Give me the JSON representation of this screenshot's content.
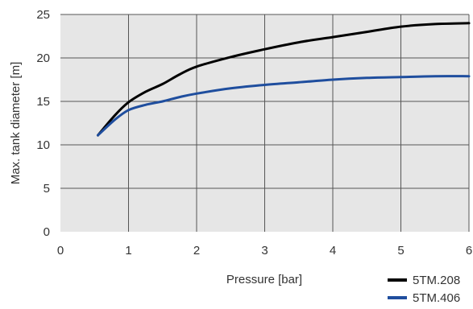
{
  "chart_data": {
    "type": "line",
    "title": "",
    "xlabel": "Pressure [bar]",
    "ylabel": "Max. tank diameter [m]",
    "xlim": [
      0,
      6
    ],
    "ylim": [
      0,
      25
    ],
    "x_ticks": [
      0,
      1,
      2,
      3,
      4,
      5,
      6
    ],
    "y_ticks": [
      0,
      5,
      10,
      15,
      20,
      25
    ],
    "x_tick_labels": [
      "0",
      "1",
      "2",
      "3",
      "4",
      "5",
      "6"
    ],
    "y_tick_labels": [
      "0",
      "5",
      "10",
      "15",
      "20",
      "25"
    ],
    "grid": true,
    "background": "#e6e6e6",
    "grid_color": "#555555",
    "legend_position": "bottom-right",
    "series": [
      {
        "name": "5TM.208",
        "color": "#000000",
        "x": [
          0.55,
          0.8,
          1.0,
          1.25,
          1.5,
          1.75,
          2.0,
          2.5,
          3.0,
          3.5,
          4.0,
          4.5,
          5.0,
          5.5,
          6.0
        ],
        "y": [
          11.1,
          13.4,
          14.9,
          16.1,
          17.0,
          18.1,
          19.0,
          20.1,
          21.0,
          21.8,
          22.4,
          23.0,
          23.6,
          23.9,
          24.0
        ]
      },
      {
        "name": "5TM.406",
        "color": "#1f4e9e",
        "x": [
          0.55,
          0.8,
          1.0,
          1.25,
          1.5,
          1.75,
          2.0,
          2.5,
          3.0,
          3.5,
          4.0,
          4.5,
          5.0,
          5.5,
          6.0
        ],
        "y": [
          11.1,
          12.9,
          14.0,
          14.6,
          15.0,
          15.5,
          15.9,
          16.5,
          16.9,
          17.2,
          17.5,
          17.7,
          17.8,
          17.9,
          17.9
        ]
      }
    ]
  }
}
